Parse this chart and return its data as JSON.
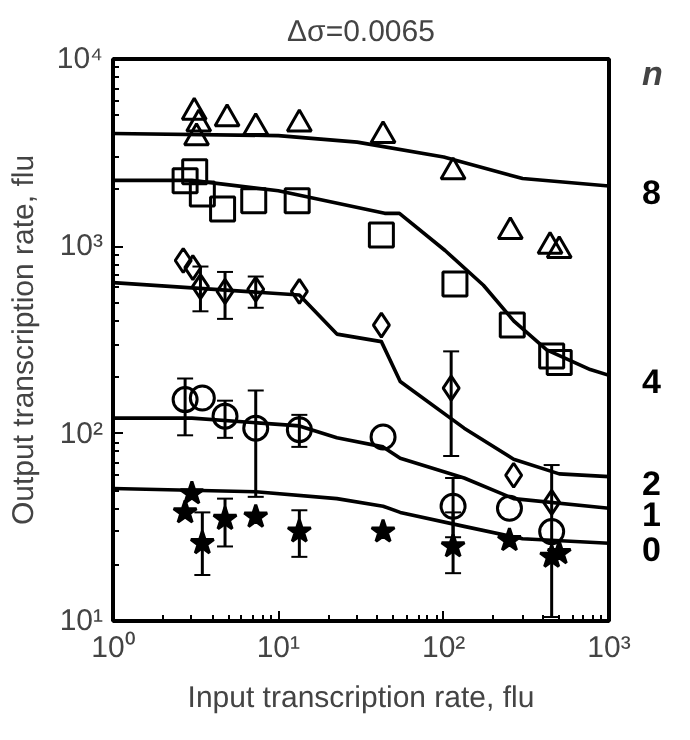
{
  "chart_data": {
    "type": "scatter",
    "title": "Δσ=0.0065",
    "xlabel": "Input transcription rate, flu",
    "ylabel": "Output transcription rate, flu",
    "log": "xy",
    "grid": false,
    "annotations": [
      "n"
    ],
    "xlim": [
      1,
      1000
    ],
    "ylim": [
      10,
      10000
    ],
    "xticks": [
      {
        "value": 1,
        "label": "10⁰"
      },
      {
        "value": 10,
        "label": "10¹"
      },
      {
        "value": 100,
        "label": "10²"
      },
      {
        "value": 1000,
        "label": "10³"
      }
    ],
    "yticks": [
      {
        "value": 10,
        "label": "10¹"
      },
      {
        "value": 100,
        "label": "10²"
      },
      {
        "value": 1000,
        "label": "10³"
      },
      {
        "value": 10000,
        "label": "10⁴"
      }
    ],
    "series": [
      {
        "marker": "triangle",
        "color": "#000000",
        "x": [
          3.1,
          3.2,
          3.3,
          4.9,
          7.3,
          13.4,
          43,
          114,
          253,
          440,
          500
        ],
        "values": [
          5200,
          3800,
          4500,
          4800,
          4300,
          4500,
          3900,
          2500,
          1200,
          1000,
          950
        ]
      },
      {
        "type": "line",
        "name": "8",
        "color": "#000000",
        "x": [
          1,
          10,
          30,
          100,
          300,
          1000
        ],
        "values": [
          4000,
          3900,
          3600,
          3000,
          2300,
          2100
        ]
      },
      {
        "marker": "square",
        "color": "#000000",
        "x": [
          2.73,
          3.12,
          3.47,
          4.6,
          7.1,
          13,
          42,
          117,
          260,
          450,
          500
        ],
        "values": [
          2240,
          2500,
          1900,
          1580,
          1750,
          1750,
          1150,
          630,
          380,
          260,
          240
        ]
      },
      {
        "type": "line",
        "name": "4",
        "color": "#000000",
        "x": [
          1,
          3,
          10,
          44,
          54,
          102,
          174,
          265,
          420,
          770,
          1000
        ],
        "values": [
          2250,
          2250,
          1980,
          1500,
          1500,
          950,
          620,
          400,
          280,
          220,
          205
        ]
      },
      {
        "marker": "diamond",
        "color": "#000000",
        "x": [
          2.66,
          3.04,
          3.38,
          4.76,
          7.3,
          13.4,
          42,
          111,
          265,
          450
        ],
        "values": [
          840,
          770,
          610,
          575,
          590,
          575,
          380,
          175,
          60,
          43
        ],
        "errors": [
          null,
          null,
          [
            450,
            780
          ],
          [
            410,
            730
          ],
          [
            470,
            690
          ],
          null,
          null,
          [
            76,
            275
          ],
          null,
          null
        ]
      },
      {
        "type": "line",
        "name": "2",
        "color": "#000000",
        "x": [
          1,
          13.4,
          22.6,
          42,
          54.6,
          133,
          265,
          500,
          1000
        ],
        "values": [
          640,
          550,
          340,
          310,
          190,
          107,
          73,
          61,
          59
        ]
      },
      {
        "marker": "circle",
        "color": "#000000",
        "x": [
          2.73,
          3.47,
          4.76,
          7.3,
          13.4,
          43,
          114,
          250,
          450
        ],
        "values": [
          152,
          155,
          124,
          107,
          105,
          96,
          41,
          40,
          30
        ],
        "errors": [
          [
            98,
            197
          ],
          null,
          [
            95,
            150
          ],
          [
            46,
            170
          ],
          [
            85,
            126
          ],
          null,
          [
            28,
            58
          ],
          null,
          null
        ]
      },
      {
        "type": "line",
        "name": "1",
        "color": "#000000",
        "x": [
          1,
          3,
          13.4,
          22.6,
          43,
          54.6,
          133,
          265,
          1000
        ],
        "values": [
          121,
          121,
          110,
          95,
          85,
          74,
          58,
          45,
          40
        ]
      },
      {
        "marker": "star",
        "color": "#000000",
        "x": [
          3.0,
          2.73,
          3.47,
          4.76,
          7.3,
          13.4,
          43,
          114,
          250,
          450,
          500
        ],
        "values": [
          48,
          38,
          26,
          35,
          36,
          30,
          30,
          25,
          27,
          22,
          23
        ],
        "errors": [
          null,
          null,
          [
            17.6,
            38
          ],
          [
            25,
            45
          ],
          null,
          [
            22,
            39
          ],
          null,
          [
            18,
            38
          ],
          null,
          [
            10.5,
            68
          ],
          null
        ]
      },
      {
        "type": "line",
        "name": "0",
        "color": "#000000",
        "x": [
          1,
          7.3,
          22.6,
          43,
          54.6,
          133,
          300,
          1000
        ],
        "values": [
          51,
          49,
          45,
          41,
          38,
          32,
          27.5,
          26
        ]
      }
    ]
  }
}
